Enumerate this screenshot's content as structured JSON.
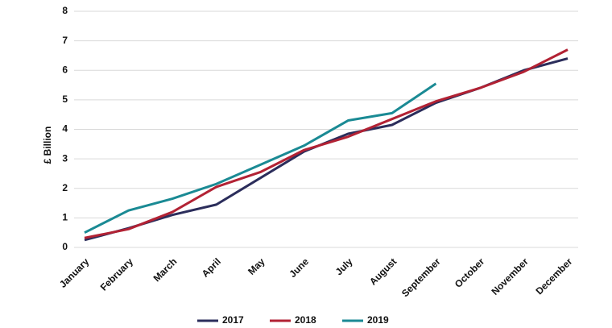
{
  "chart_data": {
    "type": "line",
    "y_label": "£ Billion",
    "categories": [
      "January",
      "February",
      "March",
      "April",
      "May",
      "June",
      "July",
      "August",
      "September",
      "October",
      "November",
      "December"
    ],
    "series": [
      {
        "name": "2017",
        "color": "#2b2d5b",
        "values": [
          0.25,
          0.65,
          1.1,
          1.45,
          2.35,
          3.25,
          3.85,
          4.15,
          4.9,
          5.4,
          6.0,
          6.4
        ]
      },
      {
        "name": "2018",
        "color": "#b22234",
        "values": [
          0.32,
          0.62,
          1.2,
          2.05,
          2.55,
          3.3,
          3.75,
          4.35,
          4.95,
          5.4,
          5.95,
          6.7
        ]
      },
      {
        "name": "2019",
        "color": "#1a8a94",
        "values": [
          0.5,
          1.25,
          1.65,
          2.15,
          2.8,
          3.45,
          4.3,
          4.55,
          5.55,
          null,
          null,
          null
        ]
      }
    ],
    "ylim": [
      0,
      8
    ],
    "yticks": [
      0,
      1,
      2,
      3,
      4,
      5,
      6,
      7,
      8
    ],
    "grid": true,
    "legend": "bottom"
  }
}
